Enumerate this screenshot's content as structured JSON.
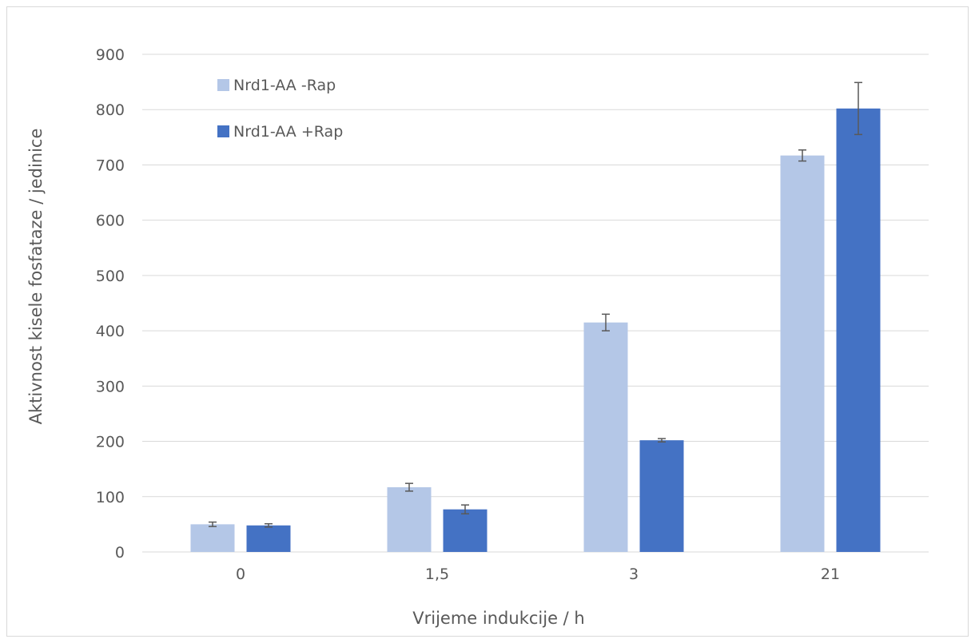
{
  "chart_data": {
    "type": "bar",
    "xlabel": "Vrijeme indukcije / h",
    "ylabel": "Aktivnost kisele fosfataze / jedinice",
    "categories": [
      "0",
      "1,5",
      "3",
      "21"
    ],
    "ylim": [
      0,
      900
    ],
    "yticks": [
      "0",
      "100",
      "200",
      "300",
      "400",
      "500",
      "600",
      "700",
      "800",
      "900"
    ],
    "grid": true,
    "legend_position": "top-left",
    "series": [
      {
        "name": "Nrd1-AA -Rap",
        "color": "#b4c7e7",
        "values": [
          50,
          117,
          415,
          717
        ],
        "errors": [
          4,
          7,
          15,
          10
        ]
      },
      {
        "name": "Nrd1-AA +Rap",
        "color": "#4472c4",
        "values": [
          48,
          77,
          202,
          802
        ],
        "errors": [
          3,
          8,
          3,
          47
        ]
      }
    ]
  }
}
